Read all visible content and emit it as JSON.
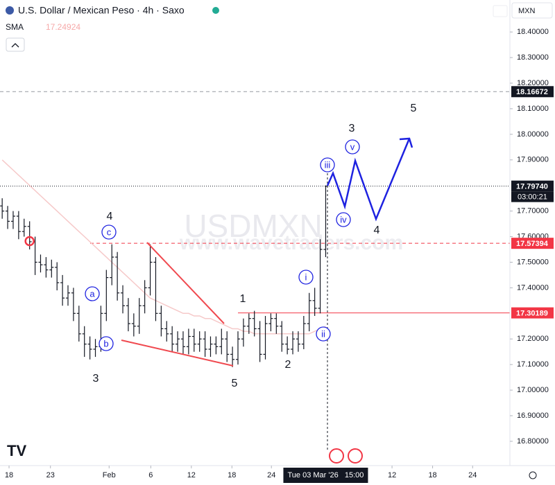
{
  "header": {
    "title": "U.S. Dollar / Mexican Peso · 4h · Saxo",
    "indicator": "SMA",
    "indicator_value": "17.24924",
    "currency": "MXN"
  },
  "chart_data": {
    "type": "ohlc",
    "color": "#131722",
    "watermark": "USDMXN",
    "site": "www.wavetraders.com",
    "ohlc": [
      [
        17.72,
        17.75,
        17.67,
        17.7
      ],
      [
        17.7,
        17.72,
        17.63,
        17.66
      ],
      [
        17.66,
        17.7,
        17.63,
        17.68
      ],
      [
        17.68,
        17.7,
        17.59,
        17.62
      ],
      [
        17.62,
        17.67,
        17.6,
        17.64
      ],
      [
        17.64,
        17.66,
        17.55,
        17.58
      ],
      [
        17.58,
        17.6,
        17.45,
        17.5
      ],
      [
        17.5,
        17.53,
        17.46,
        17.49
      ],
      [
        17.49,
        17.52,
        17.44,
        17.47
      ],
      [
        17.47,
        17.51,
        17.44,
        17.48
      ],
      [
        17.48,
        17.5,
        17.39,
        17.42
      ],
      [
        17.42,
        17.45,
        17.33,
        17.36
      ],
      [
        17.36,
        17.41,
        17.33,
        17.38
      ],
      [
        17.38,
        17.4,
        17.27,
        17.3
      ],
      [
        17.3,
        17.33,
        17.19,
        17.22
      ],
      [
        17.22,
        17.25,
        17.13,
        17.18
      ],
      [
        17.18,
        17.21,
        17.12,
        17.16
      ],
      [
        17.16,
        17.2,
        17.13,
        17.17
      ],
      [
        17.17,
        17.33,
        17.15,
        17.3
      ],
      [
        17.3,
        17.47,
        17.27,
        17.44
      ],
      [
        17.44,
        17.57,
        17.41,
        17.52
      ],
      [
        17.52,
        17.54,
        17.35,
        17.38
      ],
      [
        17.38,
        17.41,
        17.3,
        17.33
      ],
      [
        17.33,
        17.36,
        17.23,
        17.26
      ],
      [
        17.26,
        17.3,
        17.21,
        17.25
      ],
      [
        17.25,
        17.36,
        17.22,
        17.33
      ],
      [
        17.33,
        17.43,
        17.3,
        17.4
      ],
      [
        17.4,
        17.57,
        17.37,
        17.5
      ],
      [
        17.5,
        17.52,
        17.27,
        17.3
      ],
      [
        17.3,
        17.33,
        17.21,
        17.24
      ],
      [
        17.24,
        17.27,
        17.19,
        17.22
      ],
      [
        17.22,
        17.25,
        17.15,
        17.18
      ],
      [
        17.18,
        17.23,
        17.15,
        17.2
      ],
      [
        17.2,
        17.23,
        17.14,
        17.17
      ],
      [
        17.17,
        17.24,
        17.14,
        17.21
      ],
      [
        17.21,
        17.24,
        17.15,
        17.18
      ],
      [
        17.18,
        17.23,
        17.15,
        17.2
      ],
      [
        17.2,
        17.23,
        17.13,
        17.16
      ],
      [
        17.16,
        17.21,
        17.13,
        17.18
      ],
      [
        17.18,
        17.21,
        17.14,
        17.17
      ],
      [
        17.17,
        17.24,
        17.14,
        17.2
      ],
      [
        17.2,
        17.23,
        17.11,
        17.14
      ],
      [
        17.14,
        17.17,
        17.09,
        17.12
      ],
      [
        17.12,
        17.23,
        17.1,
        17.2
      ],
      [
        17.2,
        17.28,
        17.17,
        17.25
      ],
      [
        17.25,
        17.3,
        17.22,
        17.28
      ],
      [
        17.28,
        17.31,
        17.21,
        17.24
      ],
      [
        17.24,
        17.27,
        17.11,
        17.14
      ],
      [
        17.14,
        17.29,
        17.12,
        17.26
      ],
      [
        17.26,
        17.3,
        17.23,
        17.28
      ],
      [
        17.28,
        17.3,
        17.22,
        17.25
      ],
      [
        17.25,
        17.27,
        17.15,
        17.18
      ],
      [
        17.18,
        17.21,
        17.14,
        17.16
      ],
      [
        17.16,
        17.23,
        17.14,
        17.2
      ],
      [
        17.2,
        17.23,
        17.15,
        17.18
      ],
      [
        17.18,
        17.29,
        17.16,
        17.26
      ],
      [
        17.26,
        17.38,
        17.23,
        17.35
      ],
      [
        17.35,
        17.4,
        17.29,
        17.32
      ],
      [
        17.32,
        17.59,
        17.3,
        17.55
      ],
      [
        17.55,
        17.8,
        17.52,
        17.7974
      ]
    ],
    "sma": {
      "color": "#f6c9c9",
      "values": [
        17.9,
        17.88,
        17.86,
        17.84,
        17.82,
        17.8,
        17.78,
        17.76,
        17.74,
        17.72,
        17.7,
        17.68,
        17.66,
        17.64,
        17.62,
        17.6,
        17.58,
        17.56,
        17.54,
        17.52,
        17.5,
        17.48,
        17.46,
        17.44,
        17.42,
        17.4,
        17.38,
        17.36,
        17.35,
        17.34,
        17.33,
        17.32,
        17.31,
        17.3,
        17.3,
        17.29,
        17.29,
        17.28,
        17.28,
        17.27,
        17.26,
        17.25,
        17.24,
        17.24,
        17.23,
        17.23,
        17.22,
        17.22,
        17.22,
        17.22,
        17.22,
        17.22,
        17.22,
        17.22,
        17.22,
        17.22,
        17.22,
        17.23,
        17.24,
        17.24924
      ]
    },
    "xlim": [
      -0.4,
      92.6
    ],
    "xticks": [
      {
        "value": 1.25,
        "label": "18"
      },
      {
        "value": 8.8,
        "label": "23"
      },
      {
        "value": 19.5,
        "label": "Feb"
      },
      {
        "value": 27.1,
        "label": "6"
      },
      {
        "value": 34.5,
        "label": "12"
      },
      {
        "value": 41.9,
        "label": "18"
      },
      {
        "value": 49.1,
        "label": "24"
      },
      {
        "value": 71.1,
        "label": "12"
      },
      {
        "value": 78.5,
        "label": "18"
      },
      {
        "value": 85.8,
        "label": "24"
      }
    ],
    "current_time": {
      "value": 59,
      "label": "Tue 03 Mar '26   15:00"
    },
    "ylim": [
      16.705,
      18.525
    ],
    "yticks": [
      {
        "value": 18.4,
        "label": "18.40000"
      },
      {
        "value": 18.3,
        "label": "18.30000"
      },
      {
        "value": 18.2,
        "label": "18.20000"
      },
      {
        "value": 18.1,
        "label": "18.10000"
      },
      {
        "value": 18.0,
        "label": "18.00000"
      },
      {
        "value": 17.9,
        "label": "17.90000"
      },
      {
        "value": 17.7,
        "label": "17.70000"
      },
      {
        "value": 17.6,
        "label": "17.60000"
      },
      {
        "value": 17.5,
        "label": "17.50000"
      },
      {
        "value": 17.4,
        "label": "17.40000"
      },
      {
        "value": 17.2,
        "label": "17.20000"
      },
      {
        "value": 17.1,
        "label": "17.10000"
      },
      {
        "value": 17.0,
        "label": "17.00000"
      },
      {
        "value": 16.9,
        "label": "16.90000"
      },
      {
        "value": 16.8,
        "label": "16.80000"
      }
    ],
    "levels": [
      {
        "value": 18.16672,
        "label": "18.16672",
        "color": "#131722",
        "line_color": "#9598a1"
      },
      {
        "value": 17.7974,
        "label": "17.79740",
        "color": "#131722",
        "line_color": "#131722"
      },
      {
        "value": 17.57394,
        "label": "17.57394",
        "color": "#f23645",
        "line_color": "#f23645"
      },
      {
        "value": 17.30189,
        "label": "17.30189",
        "color": "#f23645",
        "line_color": "#f23645"
      }
    ],
    "countdown": "03:00:21",
    "wave_circles": [
      "a",
      "b",
      "c",
      "i",
      "ii",
      "iii",
      "iv",
      "v"
    ],
    "wave_numbers": [
      "4",
      "3",
      "1",
      "5",
      "2",
      "3",
      "4",
      "5"
    ]
  }
}
